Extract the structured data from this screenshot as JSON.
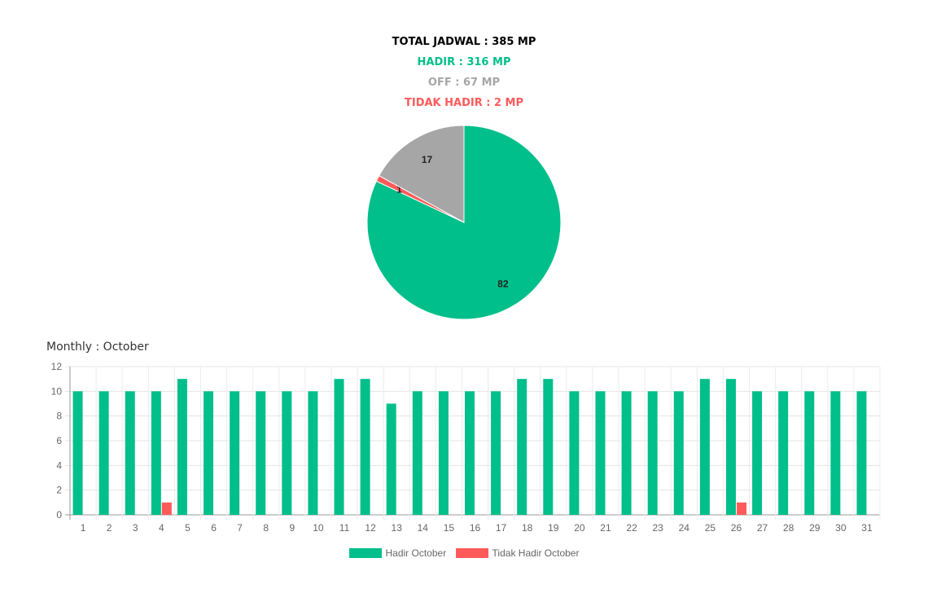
{
  "summary": {
    "total": "TOTAL JADWAL : 385 MP",
    "hadir": "HADIR : 316 MP",
    "off": "OFF : 67 MP",
    "tidak_hadir": "TIDAK HADIR : 2 MP"
  },
  "colors": {
    "hadir": "#00bf8a",
    "off": "#a6a6a6",
    "tidak_hadir": "#ff5a5a",
    "total": "#111111"
  },
  "monthly_title": "Monthly : October",
  "legend": {
    "hadir": "Hadir October",
    "tidak_hadir": "Tidak Hadir October"
  },
  "chart_data": [
    {
      "type": "pie",
      "slices": [
        {
          "value": 82,
          "label": "82",
          "color": "#00bf8a"
        },
        {
          "value": 1,
          "label": "1",
          "color": "#ff5a5a"
        },
        {
          "value": 17,
          "label": "17",
          "color": "#a6a6a6"
        }
      ]
    },
    {
      "type": "bar",
      "categories": [
        "1",
        "2",
        "3",
        "4",
        "5",
        "6",
        "7",
        "8",
        "9",
        "10",
        "11",
        "12",
        "13",
        "14",
        "15",
        "16",
        "17",
        "18",
        "19",
        "20",
        "21",
        "22",
        "23",
        "24",
        "25",
        "26",
        "27",
        "28",
        "29",
        "30",
        "31"
      ],
      "series": [
        {
          "name": "Hadir October",
          "color": "#00bf8a",
          "values": [
            10,
            10,
            10,
            10,
            11,
            10,
            10,
            10,
            10,
            10,
            11,
            11,
            9,
            10,
            10,
            10,
            10,
            11,
            11,
            10,
            10,
            10,
            10,
            10,
            11,
            11,
            10,
            10,
            10,
            10,
            10
          ]
        },
        {
          "name": "Tidak Hadir October",
          "color": "#ff5a5a",
          "values": [
            0,
            0,
            0,
            1,
            0,
            0,
            0,
            0,
            0,
            0,
            0,
            0,
            0,
            0,
            0,
            0,
            0,
            0,
            0,
            0,
            0,
            0,
            0,
            0,
            0,
            1,
            0,
            0,
            0,
            0,
            0
          ]
        }
      ],
      "ylim": [
        0,
        12
      ],
      "yticks": [
        0,
        2,
        4,
        6,
        8,
        10,
        12
      ],
      "grid": true,
      "legend": "bottom"
    }
  ]
}
